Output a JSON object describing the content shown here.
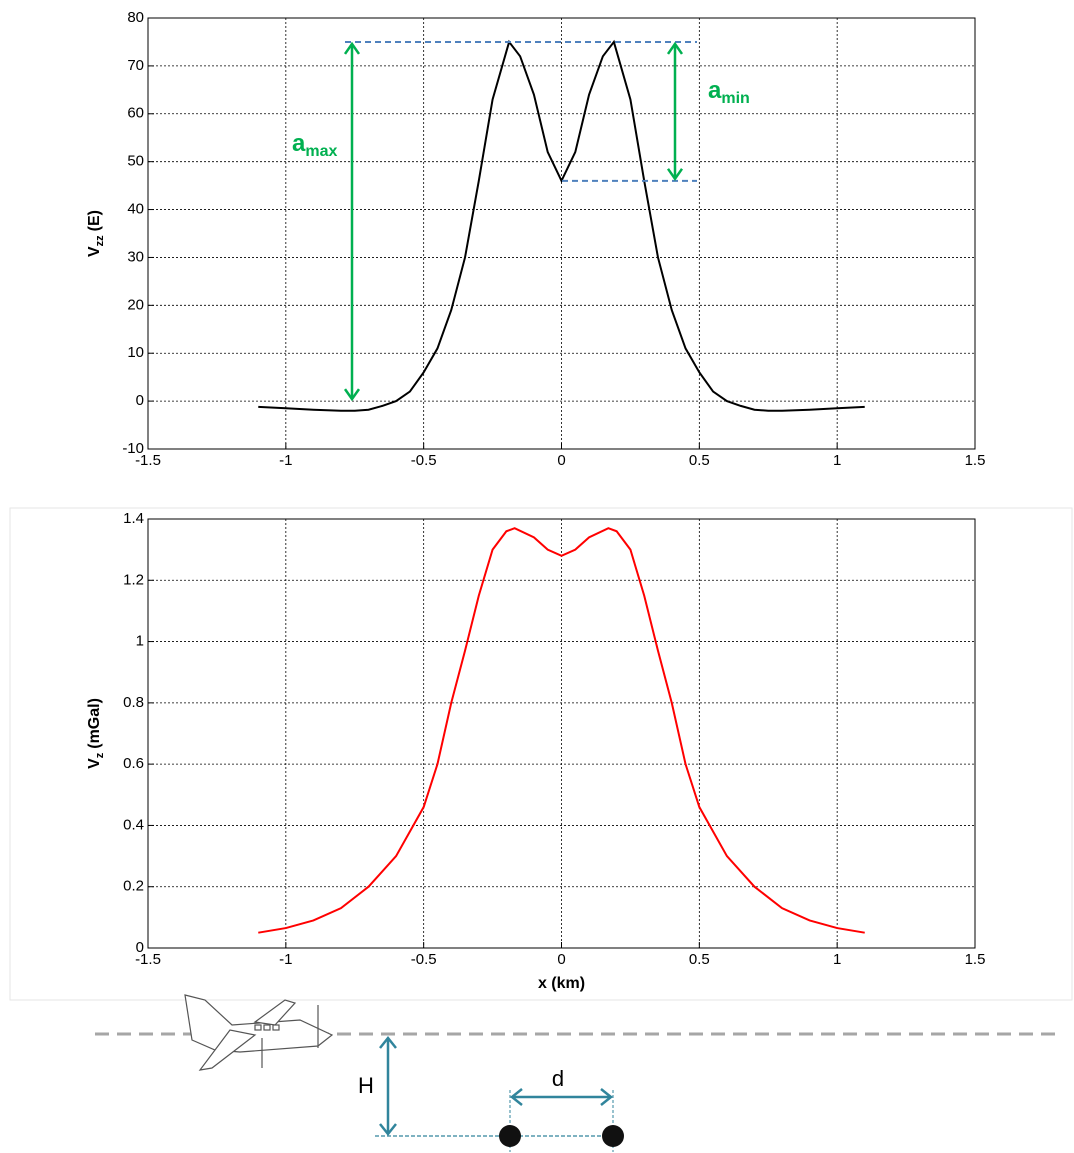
{
  "chart_data": [
    {
      "type": "line",
      "ylabel": {
        "main": "V",
        "sub": "zz",
        "rest": "(E)"
      },
      "x": [
        -1.1,
        -1.0,
        -0.9,
        -0.8,
        -0.75,
        -0.7,
        -0.65,
        -0.6,
        -0.55,
        -0.5,
        -0.45,
        -0.4,
        -0.35,
        -0.3,
        -0.25,
        -0.19,
        -0.15,
        -0.1,
        -0.05,
        0,
        0.05,
        0.1,
        0.15,
        0.19,
        0.25,
        0.3,
        0.35,
        0.4,
        0.45,
        0.5,
        0.55,
        0.6,
        0.65,
        0.7,
        0.75,
        0.8,
        0.9,
        1.0,
        1.1
      ],
      "values": [
        -1.2,
        -1.5,
        -1.8,
        -2,
        -2,
        -1.8,
        -1,
        0,
        2,
        6,
        11,
        19,
        30,
        46,
        63,
        75,
        72,
        64,
        52,
        46,
        52,
        64,
        72,
        75,
        63,
        46,
        30,
        19,
        11,
        6,
        2,
        0,
        -1,
        -1.8,
        -2,
        -2,
        -1.8,
        -1.5,
        -1.2
      ],
      "color": "#000000",
      "xlim": [
        -1.5,
        1.5
      ],
      "xticks": [
        -1.5,
        -1,
        -0.5,
        0,
        0.5,
        1,
        1.5
      ],
      "ylim": [
        -10,
        80
      ],
      "yticks": [
        -10,
        0,
        10,
        20,
        30,
        40,
        50,
        60,
        70,
        80
      ],
      "grid": true,
      "annotations": [
        {
          "label": {
            "main": "a",
            "sub": "max"
          },
          "from": 0,
          "to": 75,
          "color": "#00b050"
        },
        {
          "label": {
            "main": "a",
            "sub": "min"
          },
          "from": 46,
          "to": 75,
          "color": "#00b050"
        }
      ]
    },
    {
      "type": "line",
      "ylabel": {
        "main": "V",
        "sub": "z",
        "rest": "(mGal)"
      },
      "xlabel": "x (km)",
      "x": [
        -1.1,
        -1.0,
        -0.9,
        -0.8,
        -0.7,
        -0.6,
        -0.5,
        -0.45,
        -0.4,
        -0.35,
        -0.3,
        -0.25,
        -0.2,
        -0.17,
        -0.1,
        -0.05,
        0,
        0.05,
        0.1,
        0.17,
        0.2,
        0.25,
        0.3,
        0.35,
        0.4,
        0.45,
        0.5,
        0.6,
        0.7,
        0.8,
        0.9,
        1.0,
        1.1
      ],
      "values": [
        0.05,
        0.065,
        0.09,
        0.13,
        0.2,
        0.3,
        0.46,
        0.6,
        0.8,
        0.97,
        1.15,
        1.3,
        1.36,
        1.37,
        1.34,
        1.3,
        1.28,
        1.3,
        1.34,
        1.37,
        1.36,
        1.3,
        1.15,
        0.97,
        0.8,
        0.6,
        0.46,
        0.3,
        0.2,
        0.13,
        0.09,
        0.065,
        0.05
      ],
      "color": "#ff0000",
      "xlim": [
        -1.5,
        1.5
      ],
      "xticks": [
        -1.5,
        -1,
        -0.5,
        0,
        0.5,
        1,
        1.5
      ],
      "ylim": [
        0,
        1.4
      ],
      "yticks": [
        0,
        0.2,
        0.4,
        0.6,
        0.8,
        1,
        1.2,
        1.4
      ],
      "grid": true
    }
  ],
  "diagram": {
    "height_label": "H",
    "distance_label": "d"
  }
}
